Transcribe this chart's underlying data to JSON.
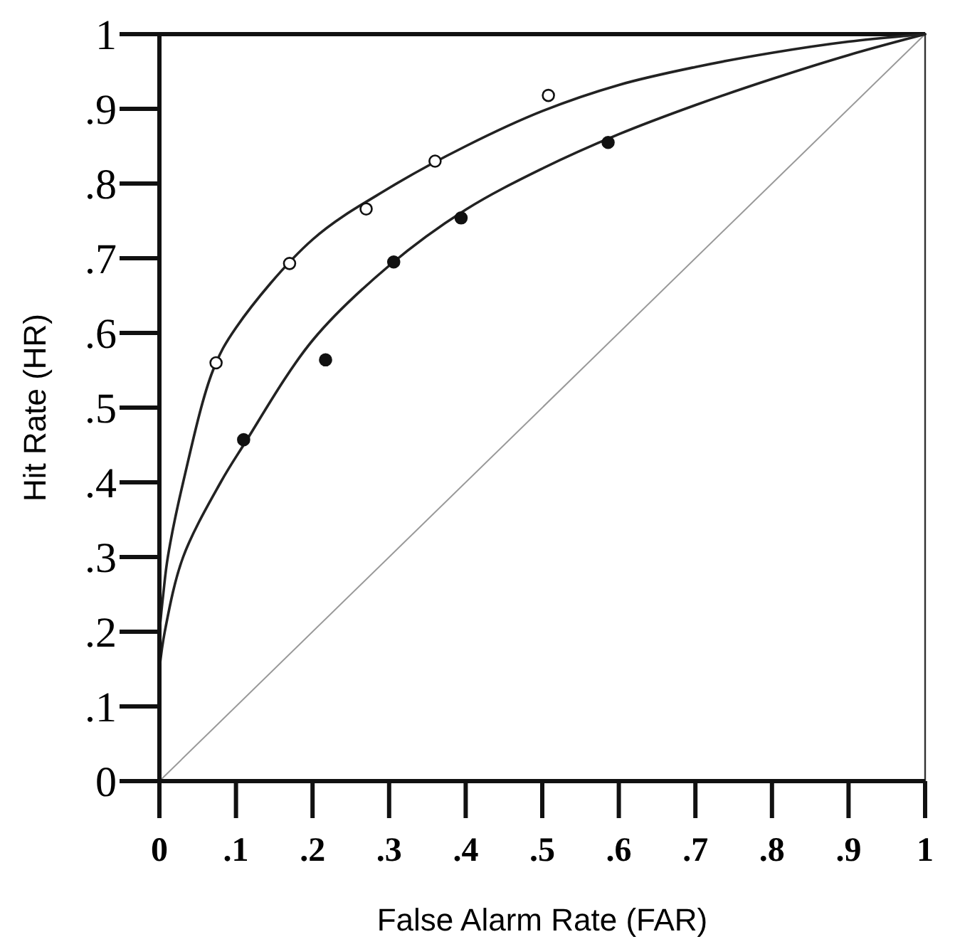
{
  "chart_data": {
    "type": "line",
    "xlabel": "False Alarm Rate (FAR)",
    "ylabel": "Hit Rate (HR)",
    "xlim": [
      0,
      1
    ],
    "ylim": [
      0,
      1
    ],
    "xticks": [
      0,
      {
        "value": 0.1,
        "label": ".1"
      },
      {
        "value": 0.2,
        "label": ".2"
      },
      {
        "value": 0.3,
        "label": ".3"
      },
      {
        "value": 0.4,
        "label": ".4"
      },
      {
        "value": 0.5,
        "label": ".5"
      },
      {
        "value": 0.6,
        "label": ".6"
      },
      {
        "value": 0.7,
        "label": ".7"
      },
      {
        "value": 0.8,
        "label": ".8"
      },
      {
        "value": 0.9,
        "label": ".9"
      },
      1
    ],
    "yticks": [
      0,
      {
        "value": 0.1,
        "label": ".1"
      },
      {
        "value": 0.2,
        "label": ".2"
      },
      {
        "value": 0.3,
        "label": ".3"
      },
      {
        "value": 0.4,
        "label": ".4"
      },
      {
        "value": 0.5,
        "label": ".5"
      },
      {
        "value": 0.6,
        "label": ".6"
      },
      {
        "value": 0.7,
        "label": ".7"
      },
      {
        "value": 0.8,
        "label": ".8"
      },
      {
        "value": 0.9,
        "label": ".9"
      },
      1
    ],
    "grid": false,
    "line_style": "solid",
    "series": [
      {
        "color": "#999999",
        "x": [
          0,
          1
        ],
        "values": [
          0,
          1
        ],
        "marker": "none"
      },
      {
        "color": "#222222",
        "marker": "none",
        "x": [
          0,
          0.005,
          0.011,
          0.031,
          0.07,
          0.1,
          0.2,
          0.3,
          0.4,
          0.5,
          0.6,
          0.7,
          0.8,
          0.9,
          1
        ],
        "values": [
          0.2,
          0.25,
          0.3,
          0.4,
          0.55,
          0.607,
          0.725,
          0.794,
          0.85,
          0.897,
          0.932,
          0.956,
          0.975,
          0.99,
          1
        ]
      },
      {
        "color": "#222222",
        "marker": "none",
        "x": [
          0,
          0.007,
          0.031,
          0.08,
          0.11,
          0.2,
          0.3,
          0.4,
          0.5,
          0.6,
          0.7,
          0.8,
          0.9,
          1
        ],
        "values": [
          0.15,
          0.2,
          0.3,
          0.4,
          0.45,
          0.59,
          0.69,
          0.765,
          0.82,
          0.866,
          0.905,
          0.94,
          0.972,
          1
        ]
      },
      {
        "type": "scatter",
        "color": "#ffffff",
        "marker": "circle",
        "x": [
          0.074,
          0.17,
          0.27,
          0.36,
          0.508
        ],
        "values": [
          0.56,
          0.693,
          0.766,
          0.83,
          0.918
        ]
      },
      {
        "type": "scatter",
        "color": "#111111",
        "marker": "circle",
        "x": [
          0.11,
          0.217,
          0.306,
          0.394,
          0.586
        ],
        "values": [
          0.457,
          0.564,
          0.695,
          0.754,
          0.855
        ]
      }
    ]
  }
}
